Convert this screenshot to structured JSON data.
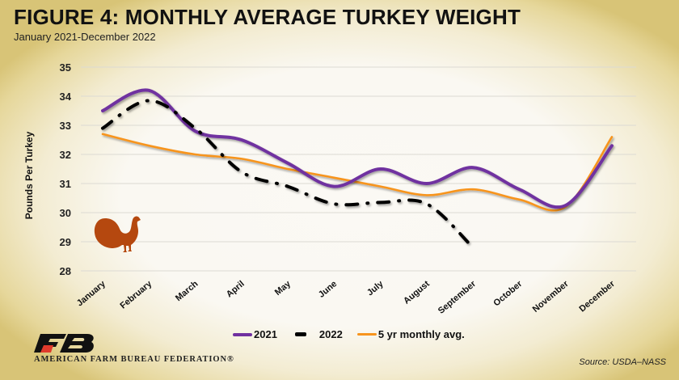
{
  "header": {
    "title": "FIGURE 4: MONTHLY AVERAGE TURKEY WEIGHT",
    "subtitle": "January 2021-December 2022"
  },
  "colors": {
    "series_2021": "#7030a0",
    "series_2022": "#000000",
    "series_5yr": "#f7941d",
    "turkey_icon": "#b5480f",
    "logo_red": "#e03a2c"
  },
  "footer": {
    "org_name": "AMERICAN FARM BUREAU FEDERATION®",
    "source": "Source: USDA–NASS",
    "logo_icon": "farm-bureau-logo"
  },
  "decor": {
    "icon": "turkey-icon"
  },
  "chart_data": {
    "type": "line",
    "title": "FIGURE 4: MONTHLY AVERAGE TURKEY WEIGHT",
    "subtitle": "January 2021-December 2022",
    "xlabel": "",
    "ylabel": "Pounds Per Turkey",
    "ylim": [
      28,
      35
    ],
    "yticks": [
      35,
      34,
      33,
      32,
      31,
      30,
      29,
      28
    ],
    "grid": true,
    "legend_position": "bottom",
    "categories": [
      "January",
      "February",
      "March",
      "April",
      "May",
      "June",
      "July",
      "August",
      "September",
      "October",
      "November",
      "December"
    ],
    "series": [
      {
        "name": "2021",
        "style": "solid",
        "color": "#7030a0",
        "values": [
          33.5,
          34.2,
          32.8,
          32.5,
          31.7,
          30.9,
          31.5,
          31.0,
          31.55,
          30.8,
          30.25,
          32.3
        ]
      },
      {
        "name": "2022",
        "style": "dash-dot",
        "color": "#000000",
        "values": [
          32.9,
          33.85,
          32.9,
          31.4,
          30.9,
          30.3,
          30.35,
          30.3,
          28.8,
          null,
          null,
          null
        ]
      },
      {
        "name": "5 yr monthly avg.",
        "style": "solid",
        "color": "#f7941d",
        "values": [
          32.7,
          32.3,
          32.0,
          31.85,
          31.5,
          31.2,
          30.9,
          30.6,
          30.8,
          30.45,
          30.2,
          32.6
        ]
      }
    ],
    "source": "Source: USDA–NASS"
  }
}
